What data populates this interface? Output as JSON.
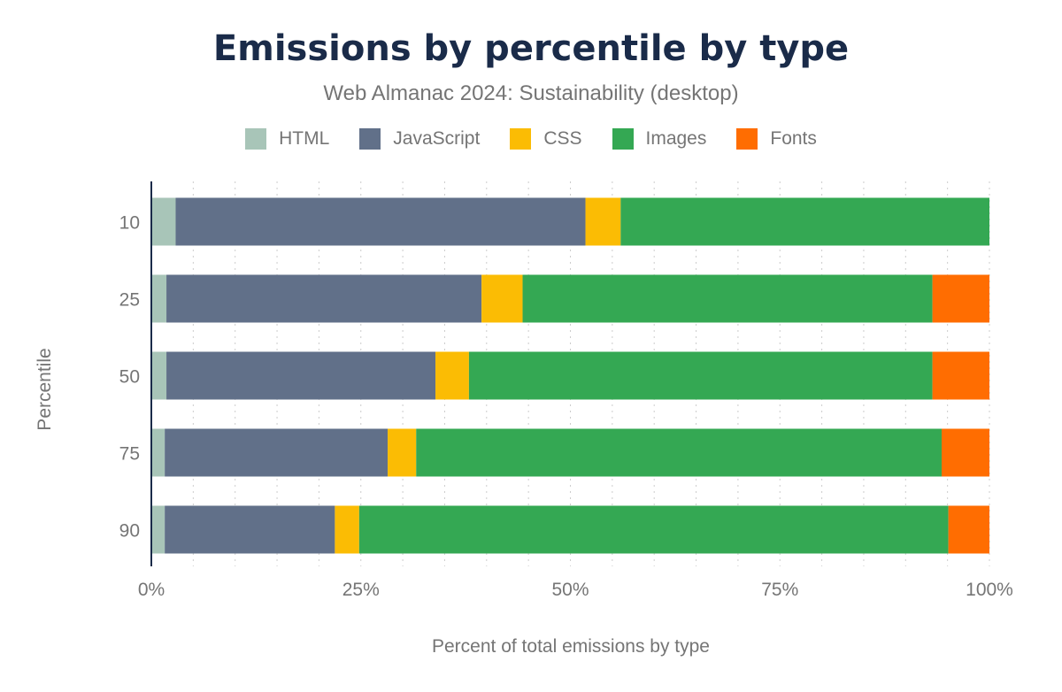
{
  "chart_data": {
    "type": "bar",
    "orientation": "horizontal",
    "stacked": true,
    "title": "Emissions by percentile by type",
    "subtitle": "Web Almanac 2024: Sustainability (desktop)",
    "xlabel": "Percent of total emissions by type",
    "ylabel": "Percentile",
    "categories": [
      "10",
      "25",
      "50",
      "75",
      "90"
    ],
    "xlim": [
      0,
      100
    ],
    "xticks": [
      "0%",
      "25%",
      "50%",
      "75%",
      "100%"
    ],
    "grid": true,
    "legend_position": "top",
    "series": [
      {
        "name": "HTML",
        "color": "#a8c5b8",
        "values": [
          2.9,
          1.8,
          1.8,
          1.6,
          1.6
        ]
      },
      {
        "name": "JavaScript",
        "color": "#617089",
        "values": [
          48.9,
          37.6,
          32.1,
          26.6,
          20.3
        ]
      },
      {
        "name": "CSS",
        "color": "#fbbc04",
        "values": [
          4.2,
          4.9,
          4.0,
          3.4,
          2.9
        ]
      },
      {
        "name": "Images",
        "color": "#34a853",
        "values": [
          44.0,
          48.9,
          55.3,
          62.7,
          70.3
        ]
      },
      {
        "name": "Fonts",
        "color": "#ff6d01",
        "values": [
          0.0,
          6.8,
          6.8,
          5.7,
          4.9
        ]
      }
    ]
  }
}
